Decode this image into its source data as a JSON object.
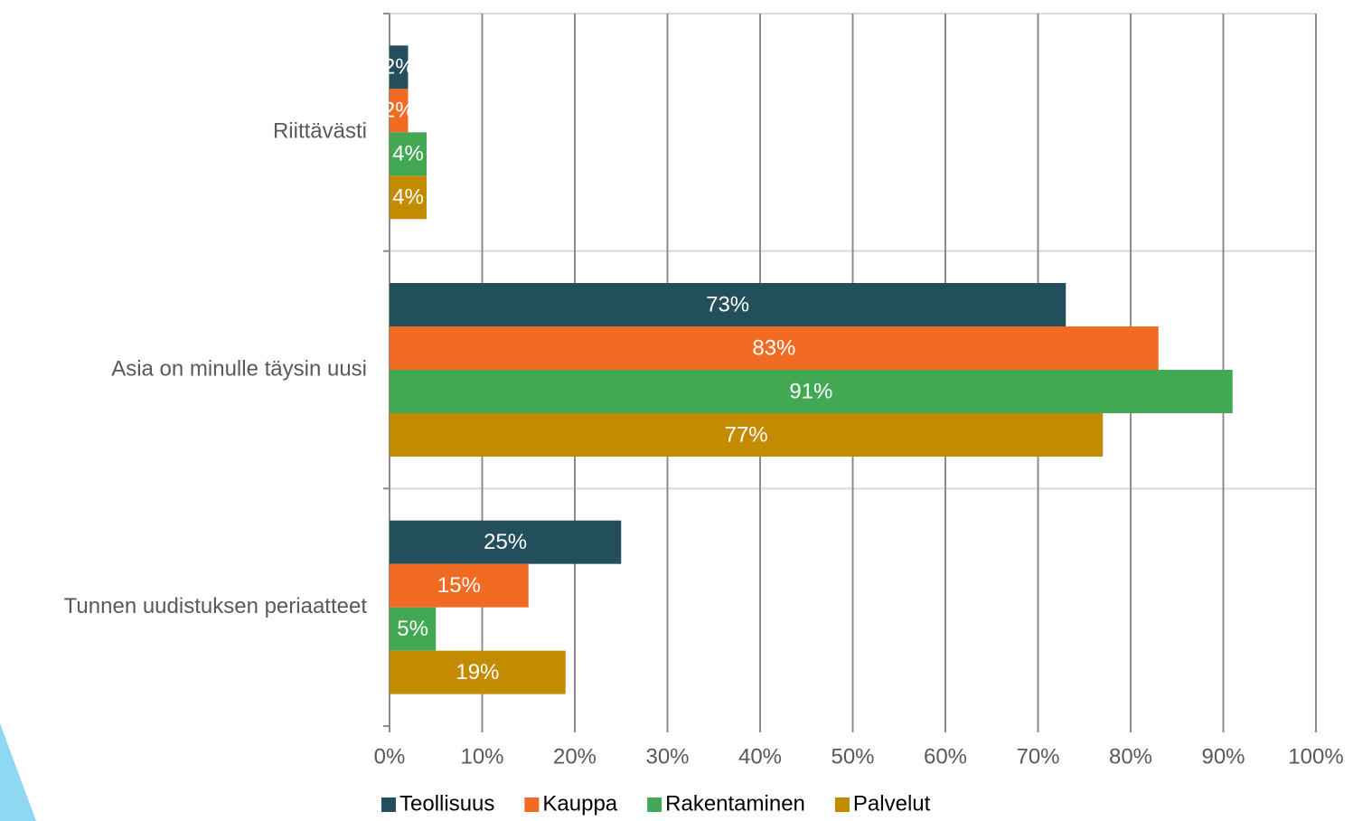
{
  "chart_data": {
    "type": "hbar",
    "categories": [
      "Riittävästi",
      "Asia on minulle täysin uusi",
      "Tunnen uudistuksen periaatteet"
    ],
    "series": [
      {
        "name": "Teollisuus",
        "color": "#234e5c",
        "values": [
          2,
          73,
          25
        ],
        "value_labels": [
          "2%",
          "73%",
          "25%"
        ]
      },
      {
        "name": "Kauppa",
        "color": "#f26b23",
        "values": [
          2,
          83,
          15
        ],
        "value_labels": [
          "2%",
          "83%",
          "15%"
        ]
      },
      {
        "name": "Rakentaminen",
        "color": "#43a853",
        "values": [
          4,
          91,
          5
        ],
        "value_labels": [
          "4%",
          "91%",
          "5%"
        ]
      },
      {
        "name": "Palvelut",
        "color": "#c38b00",
        "values": [
          4,
          77,
          19
        ],
        "value_labels": [
          "4%",
          "77%",
          "19%"
        ]
      }
    ],
    "xlim": [
      0,
      100
    ],
    "xticks": [
      {
        "value": 0,
        "label": "0%"
      },
      {
        "value": 10,
        "label": "10%"
      },
      {
        "value": 20,
        "label": "20%"
      },
      {
        "value": 30,
        "label": "30%"
      },
      {
        "value": 40,
        "label": "40%"
      },
      {
        "value": 50,
        "label": "50%"
      },
      {
        "value": 60,
        "label": "60%"
      },
      {
        "value": 70,
        "label": "70%"
      },
      {
        "value": 80,
        "label": "80%"
      },
      {
        "value": 90,
        "label": "90%"
      },
      {
        "value": 100,
        "label": "100%"
      }
    ],
    "grid": true,
    "legend": "bottom"
  }
}
